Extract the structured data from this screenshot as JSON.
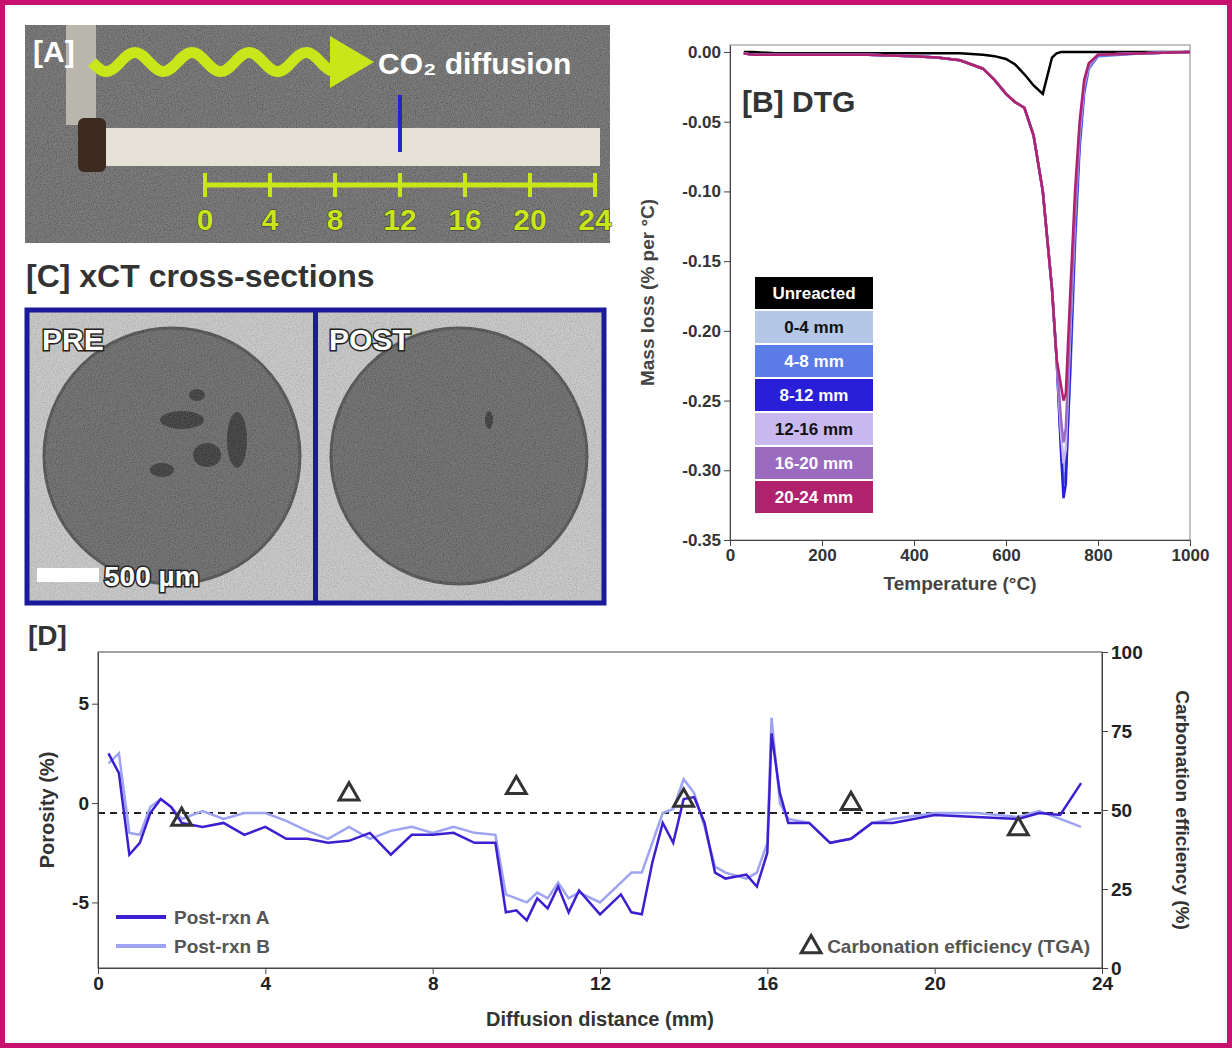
{
  "panel_a": {
    "label": "[A]",
    "annotation": "CO₂ diffusion",
    "scale_ticks": [
      0,
      4,
      8,
      12,
      16,
      20,
      24
    ],
    "cut_position": 12
  },
  "panel_c": {
    "title": "[C] xCT cross-sections",
    "images": [
      {
        "label": "PRE"
      },
      {
        "label": "POST"
      }
    ],
    "scale_bar": "500 µm"
  },
  "chart_data": [
    {
      "type": "line",
      "title": "[B] DTG",
      "x_label": "Temperature (°C)",
      "y_label": "Mass loss (% per °C)",
      "x": [
        30,
        50,
        100,
        200,
        300,
        400,
        450,
        500,
        550,
        575,
        600,
        620,
        640,
        660,
        680,
        700,
        710,
        720,
        725,
        730,
        740,
        750,
        760,
        770,
        780,
        800,
        900,
        1000
      ],
      "xlim": [
        0,
        1000
      ],
      "xticks": [
        0,
        200,
        400,
        600,
        800,
        1000
      ],
      "ylim": [
        -0.35,
        0.005
      ],
      "yticks": [
        {
          "value": 0,
          "label": "0.00"
        },
        -0.05,
        {
          "value": -0.1,
          "label": "-0.10"
        },
        -0.15,
        {
          "value": -0.2,
          "label": "-0.20"
        },
        -0.25,
        {
          "value": -0.3,
          "label": "-0.30"
        },
        -0.35
      ],
      "legend": "lower left",
      "series": [
        {
          "name": "Unreacted",
          "color": "#000000",
          "values": [
            0,
            0,
            -0.001,
            -0.001,
            -0.001,
            -0.001,
            -0.001,
            -0.001,
            -0.002,
            -0.003,
            -0.005,
            -0.009,
            -0.016,
            -0.024,
            -0.03,
            -0.004,
            -0.001,
            0,
            0,
            0,
            0,
            0,
            0,
            0,
            0,
            0,
            0,
            0
          ]
        },
        {
          "name": "0-4 mm",
          "color": "#b4c7e7",
          "values": [
            -0.001,
            -0.002,
            -0.002,
            -0.002,
            -0.002,
            -0.003,
            -0.004,
            -0.006,
            -0.012,
            -0.02,
            -0.03,
            -0.036,
            -0.04,
            -0.06,
            -0.1,
            -0.17,
            -0.22,
            -0.28,
            -0.3,
            -0.29,
            -0.21,
            -0.12,
            -0.06,
            -0.025,
            -0.01,
            -0.002,
            -0.001,
            0
          ]
        },
        {
          "name": "4-8 mm",
          "color": "#5b7be6",
          "values": [
            -0.001,
            -0.002,
            -0.002,
            -0.002,
            -0.002,
            -0.003,
            -0.004,
            -0.006,
            -0.012,
            -0.02,
            -0.03,
            -0.036,
            -0.04,
            -0.06,
            -0.1,
            -0.17,
            -0.22,
            -0.285,
            -0.31,
            -0.3,
            -0.23,
            -0.14,
            -0.07,
            -0.03,
            -0.012,
            -0.003,
            -0.001,
            0
          ]
        },
        {
          "name": "8-12 mm",
          "color": "#2a1fd8",
          "values": [
            -0.001,
            -0.002,
            -0.002,
            -0.002,
            -0.002,
            -0.003,
            -0.004,
            -0.006,
            -0.012,
            -0.02,
            -0.03,
            -0.036,
            -0.04,
            -0.06,
            -0.1,
            -0.17,
            -0.22,
            -0.29,
            -0.32,
            -0.31,
            -0.22,
            -0.13,
            -0.065,
            -0.027,
            -0.01,
            -0.002,
            -0.001,
            0
          ]
        },
        {
          "name": "12-16 mm",
          "color": "#c9b8ee",
          "values": [
            -0.001,
            -0.002,
            -0.002,
            -0.002,
            -0.002,
            -0.003,
            -0.004,
            -0.006,
            -0.012,
            -0.02,
            -0.03,
            -0.036,
            -0.04,
            -0.06,
            -0.1,
            -0.17,
            -0.22,
            -0.275,
            -0.295,
            -0.285,
            -0.2,
            -0.12,
            -0.06,
            -0.025,
            -0.01,
            -0.002,
            -0.001,
            0
          ]
        },
        {
          "name": "16-20 mm",
          "color": "#9a6bbf",
          "values": [
            -0.001,
            -0.002,
            -0.002,
            -0.002,
            -0.002,
            -0.003,
            -0.004,
            -0.006,
            -0.012,
            -0.02,
            -0.03,
            -0.036,
            -0.04,
            -0.06,
            -0.1,
            -0.17,
            -0.22,
            -0.265,
            -0.28,
            -0.27,
            -0.19,
            -0.115,
            -0.055,
            -0.022,
            -0.009,
            -0.002,
            -0.001,
            0
          ]
        },
        {
          "name": "20-24 mm",
          "color": "#b0226e",
          "values": [
            -0.001,
            -0.002,
            -0.002,
            -0.002,
            -0.002,
            -0.003,
            -0.004,
            -0.006,
            -0.012,
            -0.02,
            -0.03,
            -0.036,
            -0.04,
            -0.06,
            -0.1,
            -0.17,
            -0.22,
            -0.24,
            -0.25,
            -0.245,
            -0.17,
            -0.1,
            -0.05,
            -0.02,
            -0.008,
            -0.002,
            -0.001,
            0
          ]
        }
      ]
    },
    {
      "type": "line",
      "title": "[D]",
      "x_label": "Diffusion distance (mm)",
      "y_label": "Porosity (%)",
      "y2_label": "Carbonation efficiency (%)",
      "x": [
        0.25,
        0.5,
        0.75,
        1,
        1.25,
        1.5,
        1.75,
        2,
        2.5,
        3,
        3.5,
        4,
        4.5,
        5,
        5.5,
        6,
        6.5,
        7,
        7.5,
        8,
        8.5,
        9,
        9.5,
        9.75,
        10,
        10.25,
        10.5,
        10.75,
        11,
        11.25,
        11.5,
        12,
        12.5,
        12.75,
        13,
        13.25,
        13.5,
        13.75,
        14,
        14.25,
        14.5,
        14.75,
        15,
        15.5,
        15.75,
        16,
        16.1,
        16.3,
        16.5,
        17,
        17.5,
        18,
        18.5,
        19,
        20,
        21,
        22,
        22.5,
        23,
        23.5
      ],
      "xlim": [
        0,
        24
      ],
      "xticks": [
        0,
        4,
        8,
        12,
        16,
        20,
        24
      ],
      "ylim": [
        -8.3,
        7.6
      ],
      "yticks": [
        -5,
        0,
        5
      ],
      "y2lim": [
        0,
        100
      ],
      "y2ticks": [
        0,
        25,
        50,
        75,
        100
      ],
      "reference_line": -0.5,
      "legend": "bottom",
      "series": [
        {
          "name": "Post-rxn A",
          "color": "#3b1fd1",
          "values": [
            2.5,
            1.5,
            -2.6,
            -2.0,
            -0.5,
            0.2,
            -0.2,
            -1.0,
            -1.2,
            -1.0,
            -1.6,
            -1.2,
            -1.8,
            -1.8,
            -2.0,
            -1.9,
            -1.5,
            -2.6,
            -1.6,
            -1.6,
            -1.5,
            -2.0,
            -2.0,
            -5.5,
            -5.4,
            -5.9,
            -4.8,
            -5.3,
            -4.2,
            -5.5,
            -4.4,
            -5.6,
            -4.6,
            -5.5,
            -5.6,
            -3.0,
            -1.0,
            -2.0,
            0.2,
            0.3,
            -1.0,
            -3.5,
            -3.8,
            -3.6,
            -4.2,
            -2.5,
            3.5,
            0.5,
            -1.0,
            -1.0,
            -2.0,
            -1.8,
            -1.0,
            -1.0,
            -0.6,
            -0.7,
            -0.8,
            -0.5,
            -0.6,
            1.0
          ]
        },
        {
          "name": "Post-rxn B",
          "color": "#9ea3f2",
          "values": [
            2.0,
            2.5,
            -1.5,
            -1.6,
            -0.2,
            0.2,
            -0.2,
            -0.8,
            -0.4,
            -0.8,
            -0.5,
            -0.5,
            -0.9,
            -1.4,
            -1.8,
            -1.2,
            -1.8,
            -1.4,
            -1.2,
            -1.5,
            -1.2,
            -1.5,
            -1.6,
            -4.6,
            -4.8,
            -5.0,
            -4.5,
            -4.8,
            -4.0,
            -4.8,
            -4.5,
            -5.0,
            -4.0,
            -3.5,
            -3.5,
            -2.0,
            -0.5,
            -0.3,
            1.2,
            0.5,
            -1.2,
            -3.2,
            -3.5,
            -3.8,
            -3.5,
            -2.0,
            4.3,
            0.0,
            -0.8,
            -1.0,
            -2.0,
            -1.8,
            -1.0,
            -0.8,
            -0.5,
            -0.5,
            -0.7,
            -0.4,
            -0.8,
            -1.2
          ]
        },
        {
          "name": "Carbonation efficiency (TGA)",
          "type": "scatter",
          "marker": "triangle",
          "axis": "y2",
          "color": "#333333",
          "x": [
            2,
            6,
            10,
            14,
            18,
            22
          ],
          "values": [
            47,
            55,
            57,
            53,
            52,
            44
          ]
        }
      ]
    }
  ]
}
